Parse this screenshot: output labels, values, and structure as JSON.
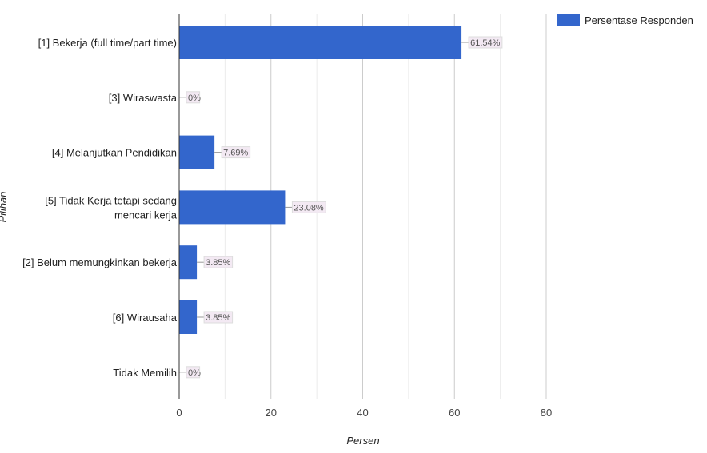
{
  "chart_data": {
    "type": "bar",
    "orientation": "horizontal",
    "categories": [
      "[1] Bekerja (full time/part time)",
      "[3] Wiraswasta",
      "[4] Melanjutkan Pendidikan",
      "[5] Tidak Kerja tetapi sedang mencari kerja",
      "[2] Belum memungkinkan bekerja",
      "[6] Wirausaha",
      "Tidak Memilih"
    ],
    "category_lines": [
      [
        "[1] Bekerja (full time/part time)"
      ],
      [
        "[3] Wiraswasta"
      ],
      [
        "[4] Melanjutkan Pendidikan"
      ],
      [
        "[5] Tidak Kerja tetapi sedang",
        "mencari kerja"
      ],
      [
        "[2] Belum memungkinkan bekerja"
      ],
      [
        "[6] Wirausaha"
      ],
      [
        "Tidak Memilih"
      ]
    ],
    "series": [
      {
        "name": "Persentase Responden",
        "values": [
          61.54,
          0,
          7.69,
          23.08,
          3.85,
          3.85,
          0
        ],
        "color": "#3366cc"
      }
    ],
    "data_labels": [
      "61.54%",
      "0%",
      "7.69%",
      "23.08%",
      "3.85%",
      "3.85%",
      "0%"
    ],
    "xlabel": "Persen",
    "ylabel": "Pilihan",
    "xlim": [
      0,
      80
    ],
    "xticks": [
      "0",
      "20",
      "40",
      "60",
      "80"
    ],
    "grid": true,
    "legend": "top-right"
  }
}
